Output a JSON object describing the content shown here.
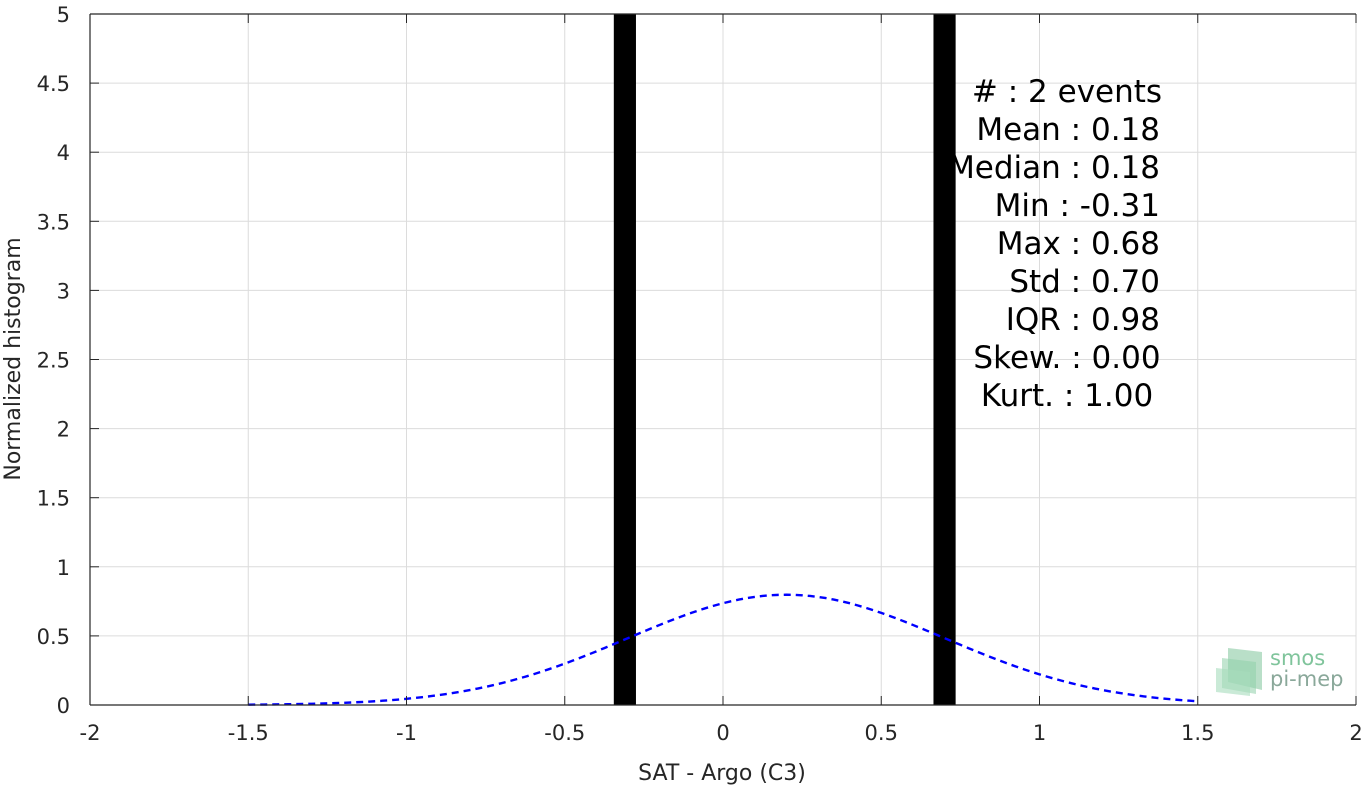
{
  "chart_data": {
    "type": "bar",
    "xlabel": "SAT - Argo (C3)",
    "ylabel": "Normalized histogram",
    "xlim": [
      -2,
      2
    ],
    "ylim": [
      0,
      5
    ],
    "xticks": [
      "-2",
      "-1.5",
      "-1",
      "-0.5",
      "0",
      "0.5",
      "1",
      "1.5",
      "2"
    ],
    "yticks": [
      "0",
      "0.5",
      "1",
      "1.5",
      "2",
      "2.5",
      "3",
      "3.5",
      "4",
      "4.5",
      "5"
    ],
    "grid": true,
    "bar_color": "#000000",
    "bars": [
      {
        "x": -0.31,
        "y": 5
      },
      {
        "x": 0.7,
        "y": 5
      }
    ],
    "bar_width": 0.07,
    "fit_curve": {
      "style": "dashed",
      "color": "#0000ff",
      "mean": 0.2,
      "std": 0.5,
      "x_range": [
        -1.5,
        1.5
      ]
    },
    "stats": [
      {
        "label": "#  : 2 events",
        "align": "center"
      },
      {
        "label": "Mean : 0.18",
        "align": "right"
      },
      {
        "label": "Median : 0.18",
        "align": "right"
      },
      {
        "label": "Min : -0.31",
        "align": "right"
      },
      {
        "label": "Max : 0.68",
        "align": "right"
      },
      {
        "label": "Std : 0.70",
        "align": "right"
      },
      {
        "label": "IQR : 0.98",
        "align": "right"
      },
      {
        "label": "Skew. : 0.00",
        "align": "center"
      },
      {
        "label": "Kurt. : 1.00",
        "align": "center"
      }
    ]
  },
  "logo": {
    "line1": "smos",
    "line2": "pi-mep",
    "color1": "#7fc49b",
    "color2": "#8aa89a"
  }
}
